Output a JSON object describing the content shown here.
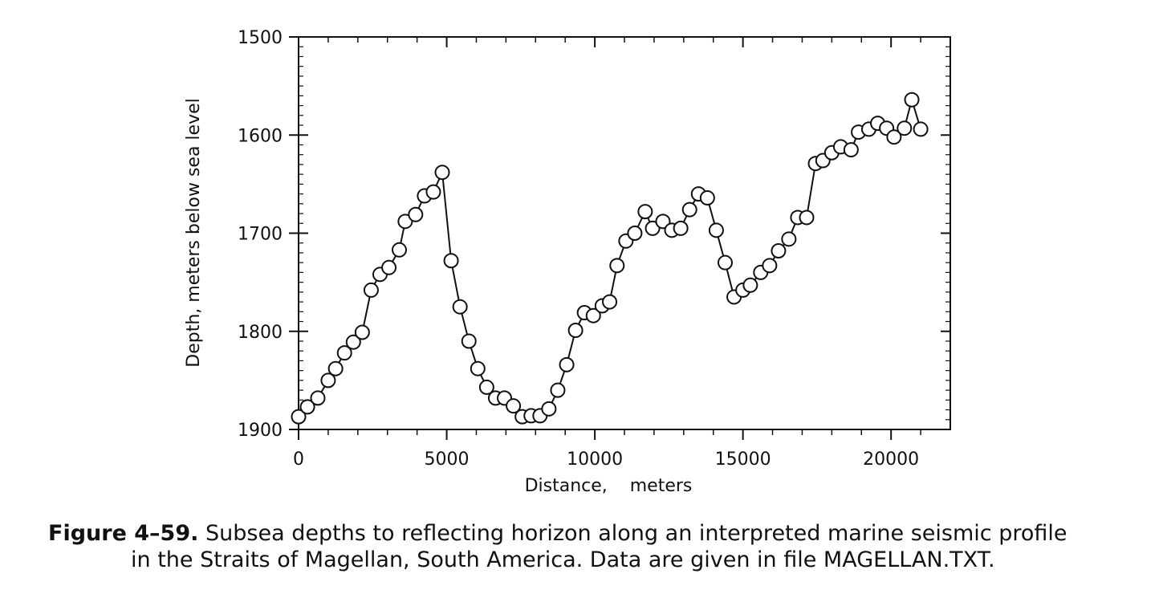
{
  "chart_data": {
    "type": "line",
    "xlabel": "Distance,    meters",
    "ylabel": "Depth, meters below sea level",
    "xlim": [
      0,
      22000
    ],
    "ylim": [
      1900,
      1500
    ],
    "y_inverted": true,
    "x_ticks": [
      0,
      5000,
      10000,
      15000,
      20000
    ],
    "y_ticks": [
      1500,
      1600,
      1700,
      1800,
      1900
    ],
    "grid": false,
    "markers": "open-circle",
    "x": [
      0,
      300,
      650,
      1000,
      1250,
      1550,
      1850,
      2150,
      2450,
      2750,
      3050,
      3400,
      3600,
      3950,
      4250,
      4550,
      4850,
      5150,
      5450,
      5750,
      6050,
      6350,
      6650,
      6950,
      7250,
      7550,
      7850,
      8150,
      8450,
      8750,
      9050,
      9350,
      9650,
      9950,
      10250,
      10500,
      10750,
      11050,
      11350,
      11700,
      11950,
      12300,
      12600,
      12900,
      13200,
      13500,
      13800,
      14100,
      14400,
      14700,
      15000,
      15250,
      15600,
      15900,
      16200,
      16550,
      16850,
      17150,
      17450,
      17700,
      18000,
      18300,
      18650,
      18900,
      19250,
      19550,
      19850,
      20100,
      20450,
      20700,
      21000
    ],
    "y": [
      1887,
      1877,
      1868,
      1850,
      1838,
      1822,
      1811,
      1801,
      1758,
      1742,
      1735,
      1717,
      1688,
      1681,
      1662,
      1658,
      1638,
      1728,
      1775,
      1810,
      1838,
      1857,
      1868,
      1868,
      1876,
      1887,
      1886,
      1886,
      1879,
      1860,
      1834,
      1799,
      1781,
      1784,
      1774,
      1770,
      1733,
      1708,
      1700,
      1678,
      1695,
      1688,
      1697,
      1695,
      1676,
      1660,
      1664,
      1697,
      1730,
      1765,
      1758,
      1753,
      1740,
      1733,
      1718,
      1706,
      1684,
      1684,
      1629,
      1626,
      1618,
      1612,
      1615,
      1597,
      1594,
      1588,
      1593,
      1602,
      1593,
      1564,
      1594
    ]
  },
  "caption": {
    "number": "Figure 4–59.",
    "line1": "Subsea depths to reflecting horizon along an interpreted marine seismic profile",
    "line2": "in the Straits of Magellan, South America. Data are given in file MAGELLAN.TXT."
  }
}
